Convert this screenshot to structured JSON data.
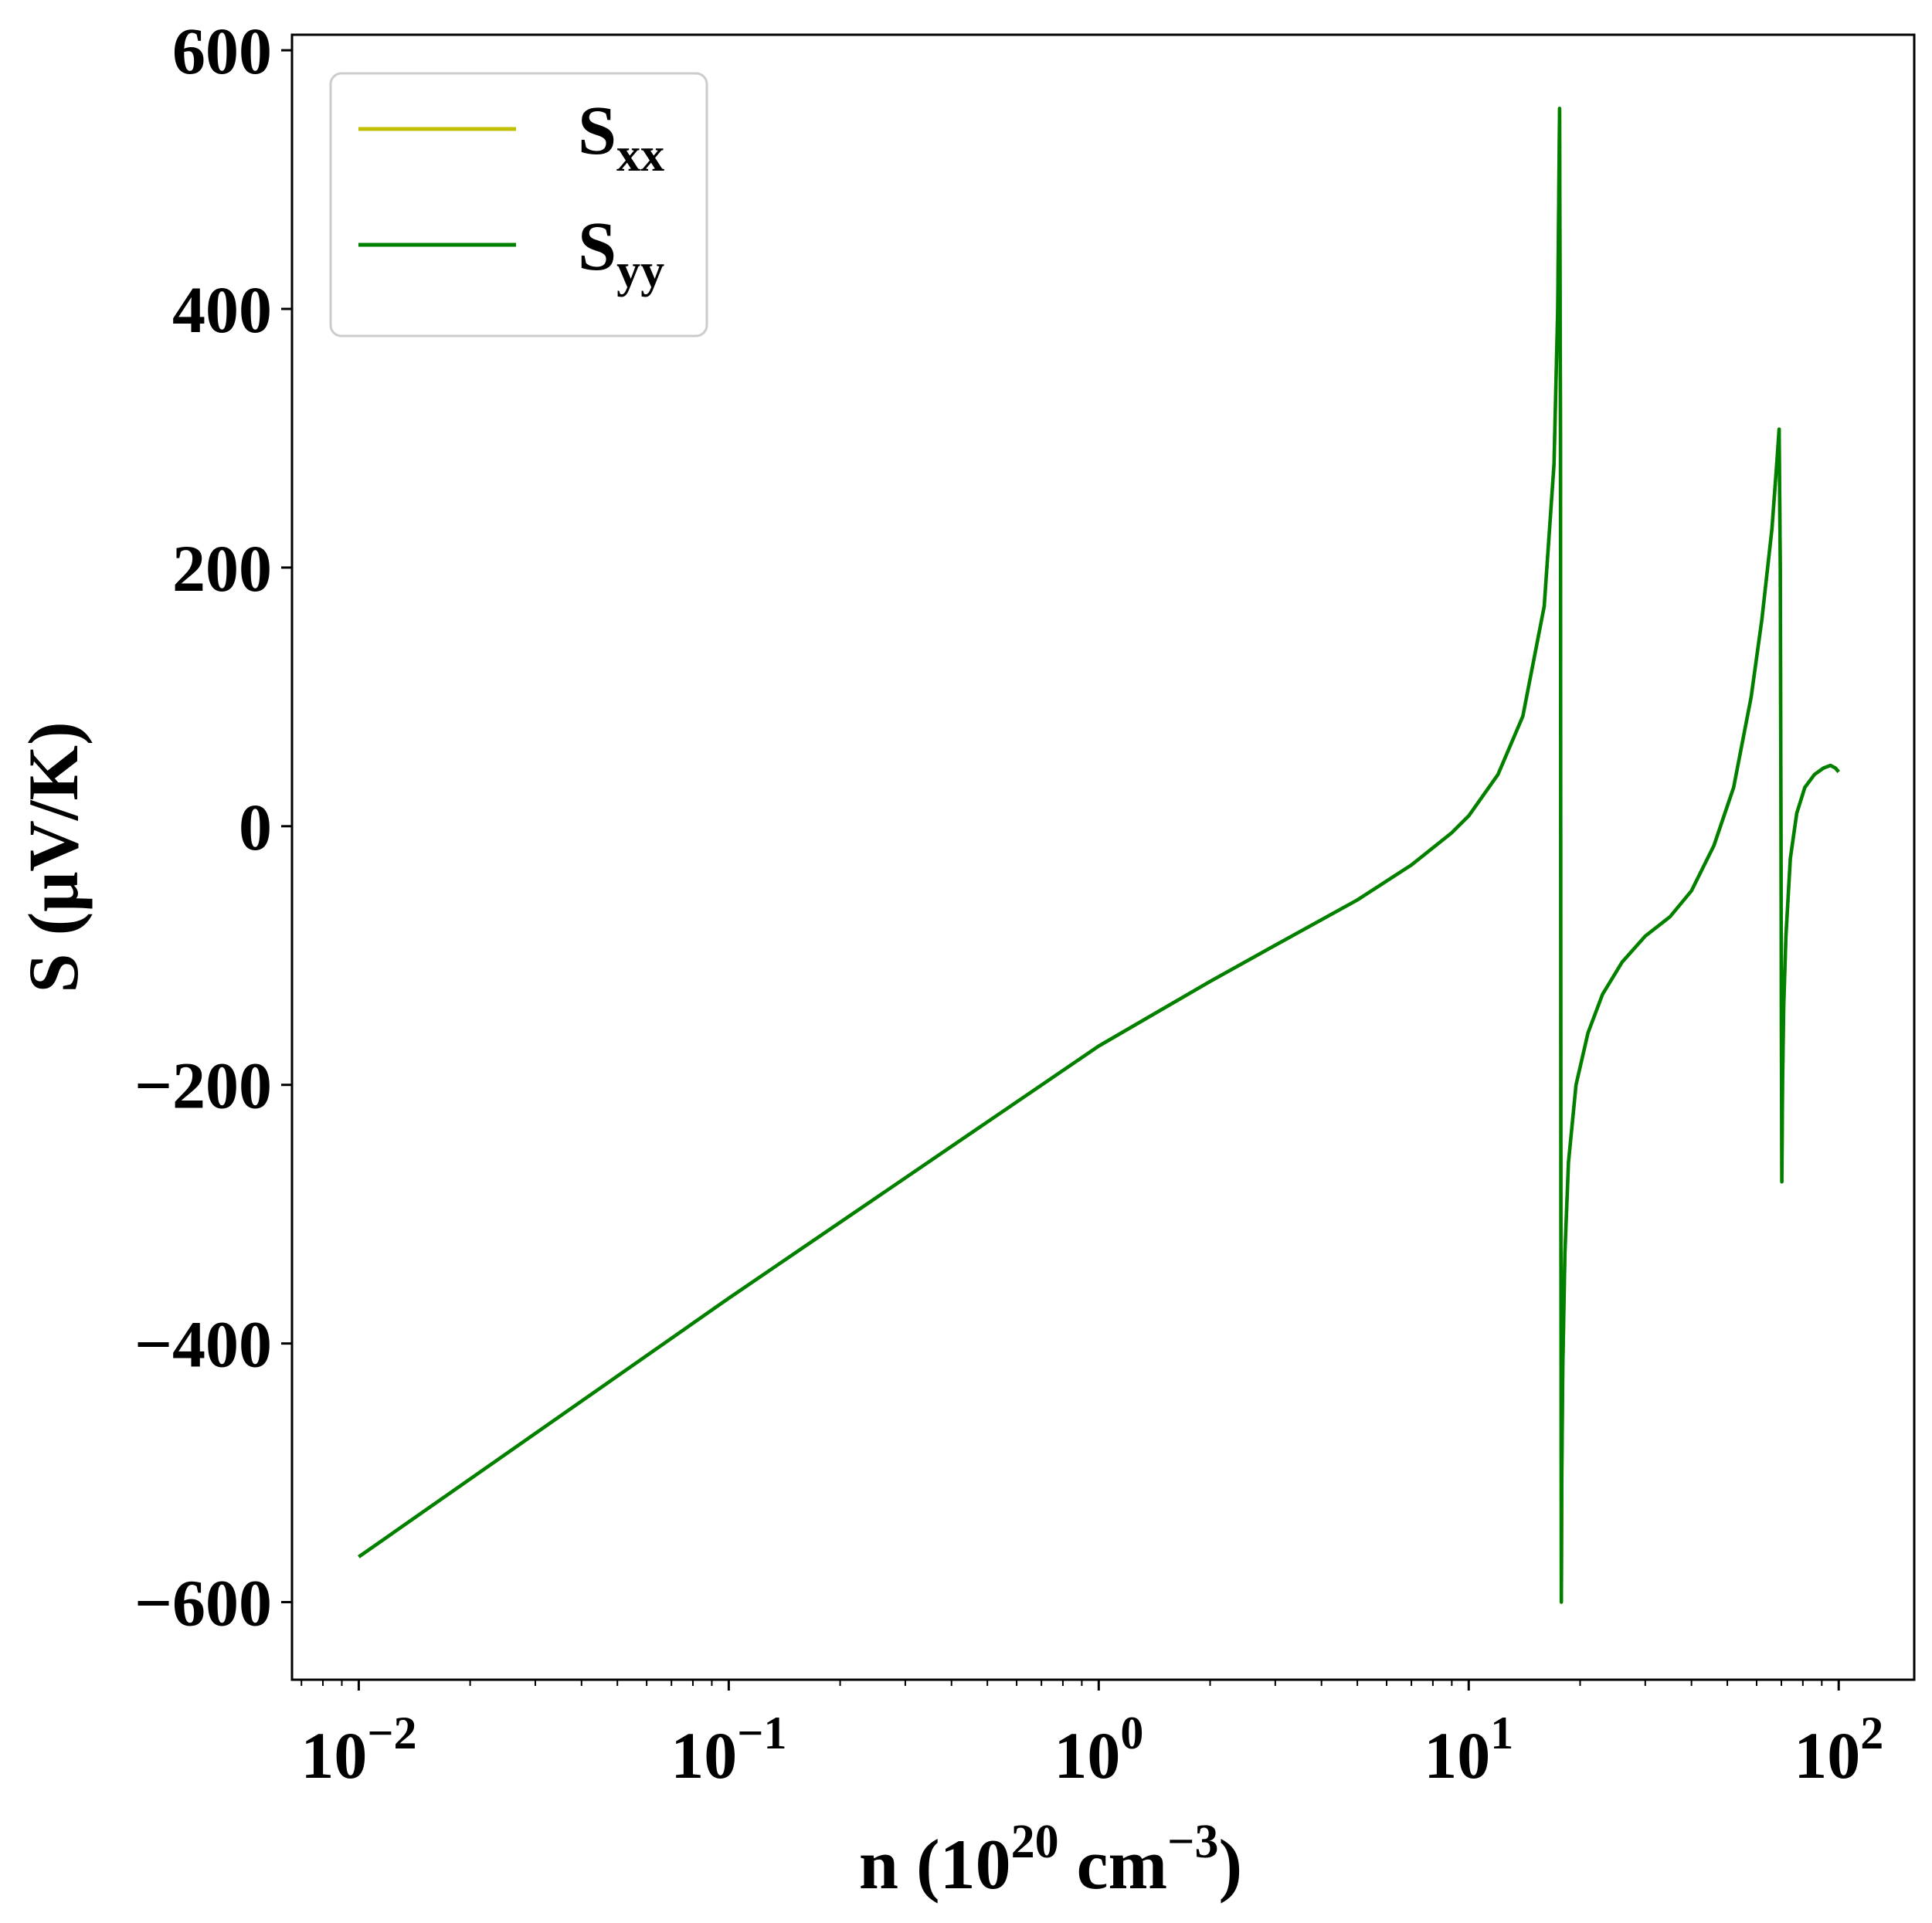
{
  "chart_data": {
    "type": "line",
    "xlabel": {
      "base": "n (10",
      "sup1": "20",
      "mid": " cm",
      "sup2": "−3",
      "end": ")"
    },
    "ylabel": "S (μV/K)",
    "xscale": "log",
    "xlim": [
      0.0066,
      160
    ],
    "ylim": [
      -660,
      612
    ],
    "x_ticks": [
      {
        "value": 0.01,
        "base": "10",
        "exp": "−2"
      },
      {
        "value": 0.1,
        "base": "10",
        "exp": "−1"
      },
      {
        "value": 1,
        "base": "10",
        "exp": "0"
      },
      {
        "value": 10,
        "base": "10",
        "exp": "1"
      },
      {
        "value": 100,
        "base": "10",
        "exp": "2"
      }
    ],
    "y_ticks": [
      {
        "value": 600,
        "label": "600"
      },
      {
        "value": 400,
        "label": "400"
      },
      {
        "value": 200,
        "label": "200"
      },
      {
        "value": 0,
        "label": "0"
      },
      {
        "value": -200,
        "label": "−200"
      },
      {
        "value": -400,
        "label": "−400"
      },
      {
        "value": -600,
        "label": "−600"
      }
    ],
    "grid": false,
    "legend_position": "top-left",
    "series": [
      {
        "name": {
          "main": "S",
          "sub": "xx"
        },
        "color": "#bfbf00",
        "x": [
          0.01,
          0.1,
          1.0,
          2.0,
          3.0,
          5.0,
          7.0,
          9.0,
          10.0,
          12.0,
          14.0,
          16.0,
          17.0,
          17.4,
          17.6,
          17.7,
          17.75,
          17.8,
          17.85,
          17.95,
          18.2,
          18.6,
          19.5,
          21.0,
          23.0,
          26.0,
          30.0,
          35.0,
          40.0,
          46.0,
          52.0,
          58.0,
          62.0,
          66.0,
          68.0,
          69.0,
          69.5,
          69.8,
          70.0,
          70.2,
          70.5,
          71.0,
          72.0,
          74.0,
          77.0,
          81.0,
          86.0,
          91.0,
          95.0,
          98.0,
          100.0
        ],
        "y": [
          -565,
          -365,
          -170,
          -120,
          -92,
          -57,
          -30,
          -5,
          8,
          40,
          85,
          170,
          280,
          400,
          555,
          300,
          -300,
          -600,
          -500,
          -420,
          -330,
          -260,
          -200,
          -160,
          -130,
          -105,
          -85,
          -70,
          -50,
          -15,
          30,
          100,
          160,
          230,
          280,
          307,
          200,
          0,
          -150,
          -275,
          -200,
          -140,
          -85,
          -25,
          10,
          30,
          40,
          45,
          47,
          45,
          42
        ]
      },
      {
        "name": {
          "main": "S",
          "sub": "yy"
        },
        "color": "#008000",
        "x": [
          0.01,
          0.1,
          1.0,
          2.0,
          3.0,
          5.0,
          7.0,
          9.0,
          10.0,
          12.0,
          14.0,
          16.0,
          17.0,
          17.4,
          17.6,
          17.7,
          17.75,
          17.8,
          17.85,
          17.95,
          18.2,
          18.6,
          19.5,
          21.0,
          23.0,
          26.0,
          30.0,
          35.0,
          40.0,
          46.0,
          52.0,
          58.0,
          62.0,
          66.0,
          68.0,
          69.0,
          69.5,
          69.8,
          70.0,
          70.2,
          70.5,
          71.0,
          72.0,
          74.0,
          77.0,
          81.0,
          86.0,
          91.0,
          95.0,
          98.0,
          100.0
        ],
        "y": [
          -565,
          -365,
          -170,
          -120,
          -92,
          -57,
          -30,
          -5,
          8,
          40,
          85,
          170,
          280,
          400,
          555,
          300,
          -300,
          -600,
          -500,
          -420,
          -330,
          -260,
          -200,
          -160,
          -130,
          -105,
          -85,
          -70,
          -50,
          -15,
          30,
          100,
          160,
          230,
          280,
          307,
          200,
          0,
          -150,
          -275,
          -200,
          -140,
          -85,
          -25,
          10,
          30,
          40,
          45,
          47,
          45,
          42
        ]
      }
    ]
  }
}
